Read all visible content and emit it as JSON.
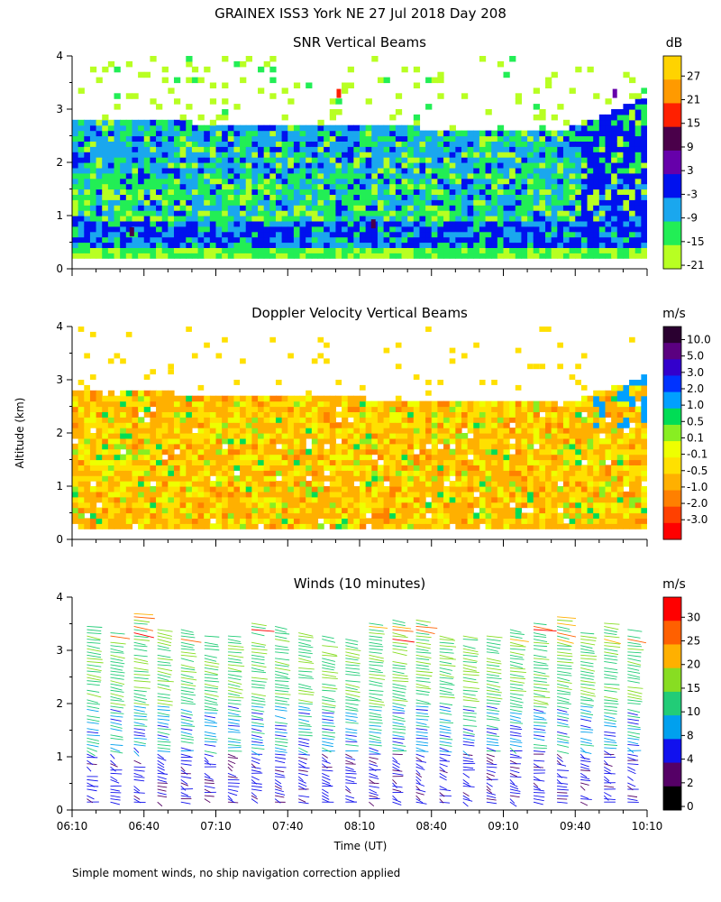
{
  "figure": {
    "title": "GRAINEX ISS3 York NE  27 Jul 2018 Day 208",
    "ylabel": "Altitude (km)",
    "xlabel": "Time (UT)",
    "footnote": "Simple moment winds, no ship navigation correction applied"
  },
  "chart_data": [
    {
      "type": "heatmap",
      "title": "SNR Vertical Beams",
      "colorbar_unit": "dB",
      "colorbar_labels": [
        "27",
        "21",
        "15",
        "9",
        "3",
        "-3",
        "-9",
        "-15",
        "-21"
      ],
      "colors": [
        "#FFD300",
        "#FF9A00",
        "#FF2000",
        "#4A004A",
        "#6600AA",
        "#0011EE",
        "#1AA7EE",
        "#22EE55",
        "#B8FF22"
      ],
      "z_range": [
        -21,
        30
      ],
      "x_range": [
        "06:10",
        "10:10"
      ],
      "y_range": [
        0,
        4
      ],
      "yticks": [
        "0",
        "1",
        "2",
        "3",
        "4"
      ],
      "x_tick_labels": [],
      "data_top_km": 2.7
    },
    {
      "type": "heatmap",
      "title": "Doppler Velocity Vertical Beams",
      "colorbar_unit": "m/s",
      "colorbar_labels": [
        "10.0",
        "5.0",
        "3.0",
        "2.0",
        "1.0",
        "0.5",
        "0.1",
        "-0.1",
        "-0.5",
        "-1.0",
        "-2.0",
        "-3.0"
      ],
      "colors": [
        "#2A0030",
        "#5B0080",
        "#3300CC",
        "#0033FF",
        "#00A0FF",
        "#00DD55",
        "#88EE22",
        "#EEFF00",
        "#FFE000",
        "#FFB000",
        "#FF8000",
        "#FF4000",
        "#FF0000"
      ],
      "dominant_value_range": [
        -1.0,
        -0.1
      ],
      "x_range": [
        "06:10",
        "10:10"
      ],
      "y_range": [
        0,
        4
      ],
      "yticks": [
        "0",
        "1",
        "2",
        "3",
        "4"
      ],
      "x_tick_labels": []
    },
    {
      "type": "scatter",
      "subtype": "wind barbs",
      "title": "Winds (10 minutes)",
      "colorbar_unit": "m/s",
      "colorbar_labels": [
        "30",
        "25",
        "20",
        "15",
        "10",
        "8",
        "4",
        "2",
        "0"
      ],
      "colors": [
        "#FF0000",
        "#FF6000",
        "#FFB000",
        "#88DD22",
        "#22CC77",
        "#00A0EE",
        "#1111EE",
        "#550066",
        "#000000"
      ],
      "speed_range": [
        0,
        34
      ],
      "x_range": [
        "06:10",
        "10:10"
      ],
      "y_range": [
        0,
        4
      ],
      "yticks": [
        "0",
        "1",
        "2",
        "3",
        "4"
      ],
      "x_tick_labels": [
        "06:10",
        "06:40",
        "07:10",
        "07:40",
        "08:10",
        "08:40",
        "09:10",
        "09:40",
        "10:10"
      ],
      "n_profiles": 24
    }
  ]
}
